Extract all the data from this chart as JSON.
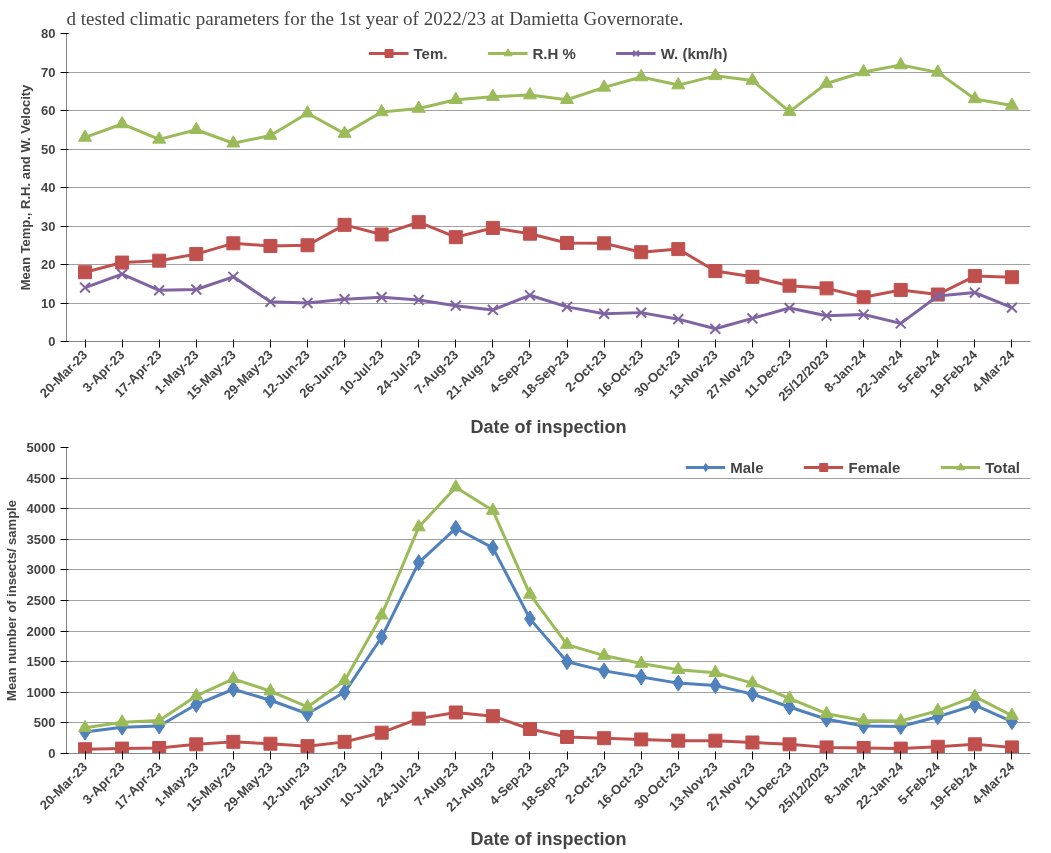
{
  "chart_data": [
    {
      "type": "line",
      "annotations": [
        "d tested climatic parameters for the 1st year of 2022/23 at Damietta Governorate."
      ],
      "xlabel": "Date of inspection",
      "ylabel": "Mean Temp., R.H. and W. Velocity",
      "categories": [
        "20-Mar-23",
        "3-Apr-23",
        "17-Apr-23",
        "1-May-23",
        "15-May-23",
        "29-May-23",
        "12-Jun-23",
        "26-Jun-23",
        "10-Jul-23",
        "24-Jul-23",
        "7-Aug-23",
        "21-Aug-23",
        "4-Sep-23",
        "18-Sep-23",
        "2-Oct-23",
        "16-Oct-23",
        "30-Oct-23",
        "13-Nov-23",
        "27-Nov-23",
        "11-Dec-23",
        "25/12/2023",
        "8-Jan-24",
        "22-Jan-24",
        "5-Feb-24",
        "19-Feb-24",
        "4-Mar-24"
      ],
      "series": [
        {
          "name": "Tem.",
          "color": "#c0504d",
          "marker": "square",
          "values": [
            18,
            20.5,
            21,
            22.7,
            25.5,
            24.8,
            25,
            30.3,
            27.8,
            31,
            27.1,
            29.5,
            28,
            25.6,
            25.5,
            23.2,
            24,
            18.3,
            16.8,
            14.5,
            13.8,
            11.5,
            13.4,
            12.2,
            17,
            16.7
          ]
        },
        {
          "name": "R.H %",
          "color": "#9bbb59",
          "marker": "triangle",
          "values": [
            53,
            56.5,
            52.5,
            55,
            51.5,
            53.5,
            59.3,
            54,
            59.6,
            60.5,
            62.8,
            63.6,
            64,
            62.8,
            66,
            68.7,
            66.6,
            69,
            67.8,
            59.7,
            67,
            70,
            71.8,
            69.9,
            63,
            61.3
          ]
        },
        {
          "name": "W. (km/h)",
          "color": "#8064a2",
          "marker": "cross",
          "values": [
            14,
            17.5,
            13.3,
            13.5,
            16.8,
            10.3,
            10,
            11,
            11.5,
            10.8,
            9.3,
            8.2,
            12,
            9,
            7.2,
            7.5,
            5.8,
            3.3,
            6,
            8.7,
            6.7,
            7,
            4.7,
            11.8,
            12.7,
            8.8
          ]
        }
      ],
      "ylim": [
        0,
        80
      ],
      "yticks": [
        0,
        10,
        20,
        30,
        40,
        50,
        60,
        70,
        80
      ],
      "grid": "y",
      "legend": "top"
    },
    {
      "type": "line",
      "xlabel": "Date of inspection",
      "ylabel": "Mean number of insects/ sample",
      "categories": [
        "20-Mar-23",
        "3-Apr-23",
        "17-Apr-23",
        "1-May-23",
        "15-May-23",
        "29-May-23",
        "12-Jun-23",
        "26-Jun-23",
        "10-Jul-23",
        "24-Jul-23",
        "7-Aug-23",
        "21-Aug-23",
        "4-Sep-23",
        "18-Sep-23",
        "2-Oct-23",
        "16-Oct-23",
        "30-Oct-23",
        "13-Nov-23",
        "27-Nov-23",
        "11-Dec-23",
        "25/12/2023",
        "8-Jan-24",
        "22-Jan-24",
        "5-Feb-24",
        "19-Feb-24",
        "4-Mar-24"
      ],
      "series": [
        {
          "name": "Male",
          "color": "#4f81bd",
          "marker": "diamond",
          "values": [
            350,
            430,
            450,
            800,
            1050,
            870,
            650,
            1000,
            1900,
            3120,
            3680,
            3360,
            2200,
            1500,
            1350,
            1250,
            1150,
            1110,
            970,
            760,
            560,
            450,
            440,
            600,
            790,
            520
          ]
        },
        {
          "name": "Female",
          "color": "#c0504d",
          "marker": "square",
          "values": [
            70,
            80,
            90,
            150,
            190,
            160,
            120,
            190,
            340,
            570,
            670,
            610,
            400,
            270,
            250,
            230,
            210,
            210,
            180,
            150,
            100,
            90,
            80,
            110,
            150,
            100
          ]
        },
        {
          "name": "Total",
          "color": "#9bbb59",
          "marker": "triangle",
          "values": [
            420,
            510,
            540,
            940,
            1220,
            1020,
            760,
            1190,
            2260,
            3700,
            4350,
            3970,
            2600,
            1780,
            1600,
            1470,
            1370,
            1320,
            1150,
            900,
            650,
            540,
            530,
            700,
            930,
            620
          ]
        }
      ],
      "ylim": [
        0,
        5000
      ],
      "yticks": [
        0,
        500,
        1000,
        1500,
        2000,
        2500,
        3000,
        3500,
        4000,
        4500,
        5000
      ],
      "grid": "y",
      "legend": "top right"
    }
  ]
}
